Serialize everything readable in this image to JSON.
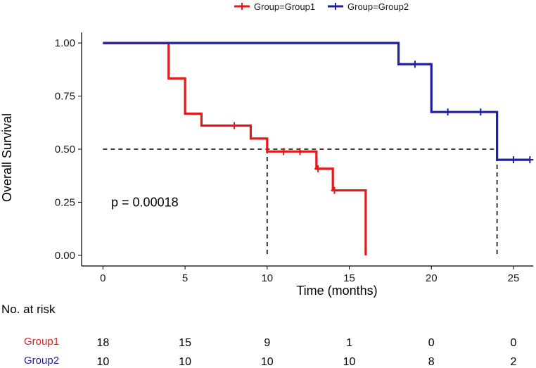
{
  "chart_data": {
    "type": "line",
    "subtype": "kaplan-meier-step",
    "xlabel": "Time (months)",
    "ylabel": "Overall Survival",
    "xlim": [
      -1.3,
      26.2
    ],
    "ylim": [
      -0.05,
      1.05
    ],
    "x_ticks": [
      0,
      5,
      10,
      15,
      20,
      25
    ],
    "y_ticks": [
      0.0,
      0.25,
      0.5,
      0.75,
      1.0
    ],
    "y_tick_labels": [
      "0.00",
      "0.25",
      "0.50",
      "0.75",
      "1.00"
    ],
    "legend_position": "top",
    "pvalue_text": "p = 0.00018",
    "pvalue_pos": [
      0.5,
      0.25
    ],
    "median_line": {
      "y": 0.5,
      "x_from": 0,
      "x_to": 24,
      "drop_at": [
        10,
        24
      ]
    },
    "series": [
      {
        "name": "Group=Group1",
        "short_name": "Group1",
        "color": "#e31a1c",
        "steps": [
          [
            0,
            1.0
          ],
          [
            4,
            0.833
          ],
          [
            5,
            0.667
          ],
          [
            6,
            0.611
          ],
          [
            9,
            0.55
          ],
          [
            10,
            0.489
          ],
          [
            13,
            0.408
          ],
          [
            14,
            0.306
          ],
          [
            16,
            0.0
          ]
        ],
        "end_time": 16,
        "censor": [
          [
            8,
            0.611
          ],
          [
            11,
            0.489
          ],
          [
            12,
            0.489
          ],
          [
            13.1,
            0.408
          ],
          [
            14.1,
            0.306
          ]
        ],
        "risk": [
          18,
          15,
          9,
          1,
          0,
          0
        ]
      },
      {
        "name": "Group=Group2",
        "short_name": "Group2",
        "color": "#1f1fa0",
        "steps": [
          [
            0,
            1.0
          ],
          [
            18,
            0.9
          ],
          [
            20,
            0.675
          ],
          [
            24,
            0.45
          ]
        ],
        "end_time": 26,
        "censor": [
          [
            19,
            0.9
          ],
          [
            21,
            0.675
          ],
          [
            23,
            0.675
          ],
          [
            25,
            0.45
          ],
          [
            26,
            0.45
          ]
        ],
        "risk": [
          10,
          10,
          10,
          10,
          8,
          2
        ]
      }
    ],
    "risk_table": {
      "title": "No. at risk",
      "times": [
        0,
        5,
        10,
        15,
        20,
        25
      ]
    }
  }
}
